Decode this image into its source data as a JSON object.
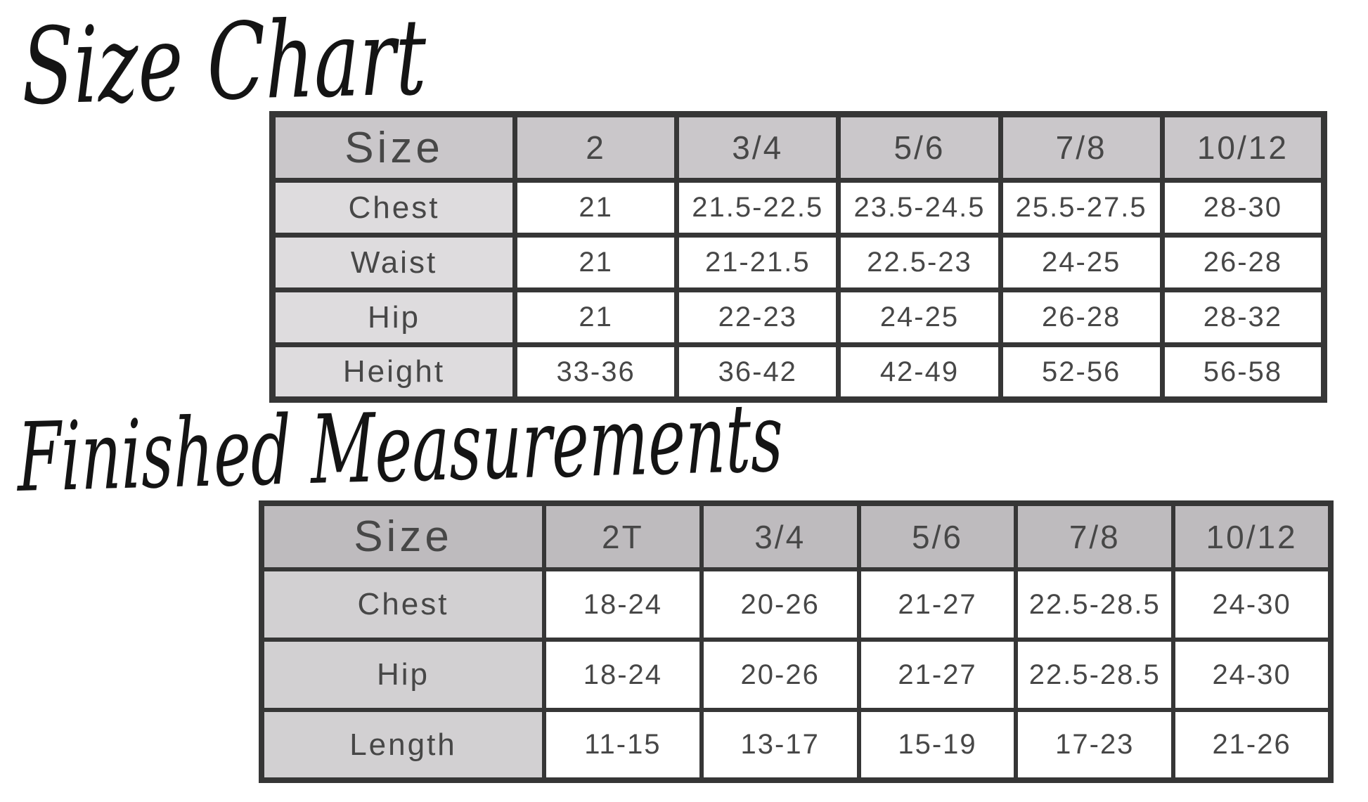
{
  "colors": {
    "page_bg": "#ffffff",
    "border": "#363636",
    "heading_text": "#141414",
    "value_text": "#474747",
    "cell_bg": "#ffffff",
    "t1_header_bg": "#cac7ca",
    "t1_label_bg": "#dedcde",
    "t2_header_bg": "#bebbbe",
    "t2_label_bg": "#d2d0d2"
  },
  "chart_data": [
    {
      "type": "table",
      "title": "Size Chart",
      "columns": [
        "Size",
        "2",
        "3/4",
        "5/6",
        "7/8",
        "10/12"
      ],
      "rows": [
        [
          "Chest",
          "21",
          "21.5-22.5",
          "23.5-24.5",
          "25.5-27.5",
          "28-30"
        ],
        [
          "Waist",
          "21",
          "21-21.5",
          "22.5-23",
          "24-25",
          "26-28"
        ],
        [
          "Hip",
          "21",
          "22-23",
          "24-25",
          "26-28",
          "28-32"
        ],
        [
          "Height",
          "33-36",
          "36-42",
          "42-49",
          "52-56",
          "56-58"
        ]
      ]
    },
    {
      "type": "table",
      "title": "Finished Measurements",
      "columns": [
        "Size",
        "2T",
        "3/4",
        "5/6",
        "7/8",
        "10/12"
      ],
      "rows": [
        [
          "Chest",
          "18-24",
          "20-26",
          "21-27",
          "22.5-28.5",
          "24-30"
        ],
        [
          "Hip",
          "18-24",
          "20-26",
          "21-27",
          "22.5-28.5",
          "24-30"
        ],
        [
          "Length",
          "11-15",
          "13-17",
          "15-19",
          "17-23",
          "21-26"
        ]
      ]
    }
  ]
}
